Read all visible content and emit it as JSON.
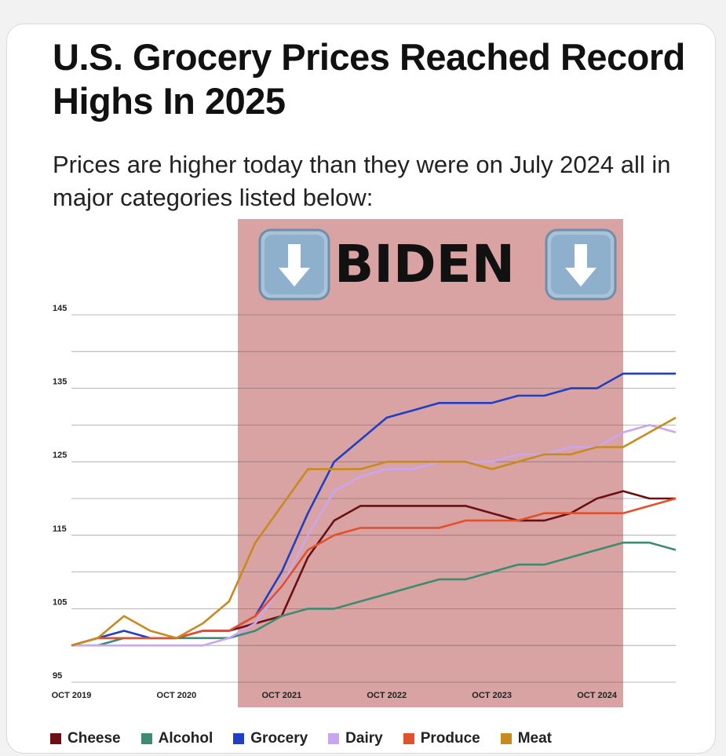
{
  "header": {
    "title": "U.S. Grocery Prices Reached Record Highs In 2025",
    "subtitle": "Prices are higher today than they were on July 2024 all in major categories listed below:"
  },
  "annotation": {
    "label": "BIDEN",
    "icon": "down-arrow-icon",
    "shade_start": "2021-05",
    "shade_end": "2025-01",
    "shade_color": "#d9a3a3"
  },
  "chart_data": {
    "type": "line",
    "title": "U.S. Grocery Prices Reached Record Highs In 2025",
    "subtitle": "Prices are higher today than they were on July 2024 all in major categories listed below:",
    "xlabel": "",
    "ylabel": "",
    "ylim": [
      95,
      145
    ],
    "yticks": [
      95,
      105,
      115,
      125,
      135,
      145
    ],
    "xticks": [
      "OCT 2019",
      "OCT 2020",
      "OCT 2021",
      "OCT 2022",
      "OCT 2023",
      "OCT 2024"
    ],
    "xrange": [
      "2019-10",
      "2025-07"
    ],
    "grid": true,
    "legend_position": "bottom",
    "x": [
      "2019-10",
      "2020-01",
      "2020-04",
      "2020-07",
      "2020-10",
      "2021-01",
      "2021-04",
      "2021-07",
      "2021-10",
      "2022-01",
      "2022-04",
      "2022-07",
      "2022-10",
      "2023-01",
      "2023-04",
      "2023-07",
      "2023-10",
      "2024-01",
      "2024-04",
      "2024-07",
      "2024-10",
      "2025-01",
      "2025-04",
      "2025-07"
    ],
    "series": [
      {
        "name": "Cheese",
        "color": "#6b0f12",
        "values": [
          100,
          101,
          101,
          101,
          101,
          102,
          102,
          103,
          104,
          112,
          117,
          119,
          119,
          119,
          119,
          119,
          118,
          117,
          117,
          118,
          120,
          121,
          120,
          120
        ]
      },
      {
        "name": "Alcohol",
        "color": "#3d8b70",
        "values": [
          100,
          100,
          101,
          101,
          101,
          101,
          101,
          102,
          104,
          105,
          105,
          106,
          107,
          108,
          109,
          109,
          110,
          111,
          111,
          112,
          113,
          114,
          114,
          113
        ]
      },
      {
        "name": "Grocery",
        "color": "#1f3fc4",
        "values": [
          100,
          101,
          102,
          101,
          101,
          102,
          102,
          104,
          110,
          118,
          125,
          128,
          131,
          132,
          133,
          133,
          133,
          134,
          134,
          135,
          135,
          137,
          137,
          137
        ]
      },
      {
        "name": "Dairy",
        "color": "#c9a6f0",
        "values": [
          100,
          100,
          100,
          100,
          100,
          100,
          101,
          103,
          108,
          115,
          121,
          123,
          124,
          124,
          125,
          125,
          125,
          126,
          126,
          127,
          127,
          129,
          130,
          129
        ]
      },
      {
        "name": "Produce",
        "color": "#e0512c",
        "values": [
          100,
          101,
          101,
          101,
          101,
          102,
          102,
          104,
          108,
          113,
          115,
          116,
          116,
          116,
          116,
          117,
          117,
          117,
          118,
          118,
          118,
          118,
          119,
          120
        ]
      },
      {
        "name": "Meat",
        "color": "#c88a1e",
        "values": [
          100,
          101,
          104,
          102,
          101,
          103,
          106,
          114,
          119,
          124,
          124,
          124,
          125,
          125,
          125,
          125,
          124,
          125,
          126,
          126,
          127,
          127,
          129,
          131
        ]
      }
    ]
  }
}
